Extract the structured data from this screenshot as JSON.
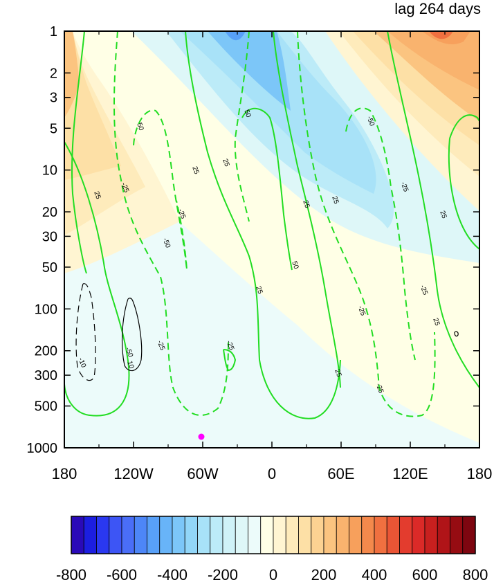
{
  "title": "lag 264 days",
  "chart_data": {
    "type": "contour",
    "title": "lag 264 days",
    "x_axis": {
      "ticks": [
        -180,
        -120,
        -60,
        0,
        60,
        120,
        180
      ],
      "tick_labels": [
        "180",
        "120W",
        "60W",
        "0",
        "60E",
        "120E",
        "180"
      ],
      "range": [
        -180,
        180
      ]
    },
    "y_axis": {
      "scale": "log",
      "reversed": true,
      "ticks": [
        1,
        2,
        3,
        5,
        10,
        20,
        30,
        50,
        100,
        200,
        300,
        500,
        1000
      ],
      "tick_labels": [
        "1",
        "2",
        "3",
        "5",
        "10",
        "20",
        "30",
        "50",
        "100",
        "200",
        "300",
        "500",
        "1000"
      ],
      "range": [
        1,
        1000
      ]
    },
    "colorbar": {
      "levels": [
        -800,
        -750,
        -700,
        -650,
        -600,
        -550,
        -500,
        -450,
        -400,
        -350,
        -300,
        -250,
        -200,
        -150,
        -100,
        -50,
        0,
        50,
        100,
        150,
        200,
        250,
        300,
        350,
        400,
        450,
        500,
        550,
        600,
        650,
        700,
        750,
        800
      ],
      "colors": [
        "#2a0ab8",
        "#1c1ee0",
        "#2a38f0",
        "#3d55f5",
        "#4a6ef7",
        "#4d86f7",
        "#58a0f8",
        "#68b4f8",
        "#7cc6f8",
        "#92d6f8",
        "#a8e2f8",
        "#bcebf8",
        "#cff2f8",
        "#def7f8",
        "#ecfbfa",
        "#ffffe6",
        "#fff5d2",
        "#feebbb",
        "#fde0a6",
        "#fcd292",
        "#fbc480",
        "#f9b36e",
        "#f7a05c",
        "#f4894c",
        "#f07040",
        "#ea5535",
        "#e33c2e",
        "#db2a28",
        "#c8201f",
        "#b01418",
        "#960c12",
        "#7e0610"
      ],
      "tick_labels": [
        "-800",
        "-600",
        "-400",
        "-200",
        "0",
        "200",
        "400",
        "600",
        "800"
      ],
      "tick_values": [
        -800,
        -600,
        -400,
        -200,
        0,
        200,
        400,
        600,
        800
      ]
    },
    "green_contour_labels": [
      "50",
      "25",
      "-25",
      "-50",
      "25",
      "-25",
      "-50",
      "25",
      "-25",
      "50",
      "25",
      "25",
      "50",
      "25",
      "-25",
      "-50",
      "25",
      "25",
      "-25",
      "25",
      "-25",
      "-25",
      "-25"
    ],
    "black_contour_labels": [
      "-10",
      "10"
    ],
    "marker": {
      "lon": -60,
      "pressure": 870,
      "color": "#ff00ff"
    }
  }
}
